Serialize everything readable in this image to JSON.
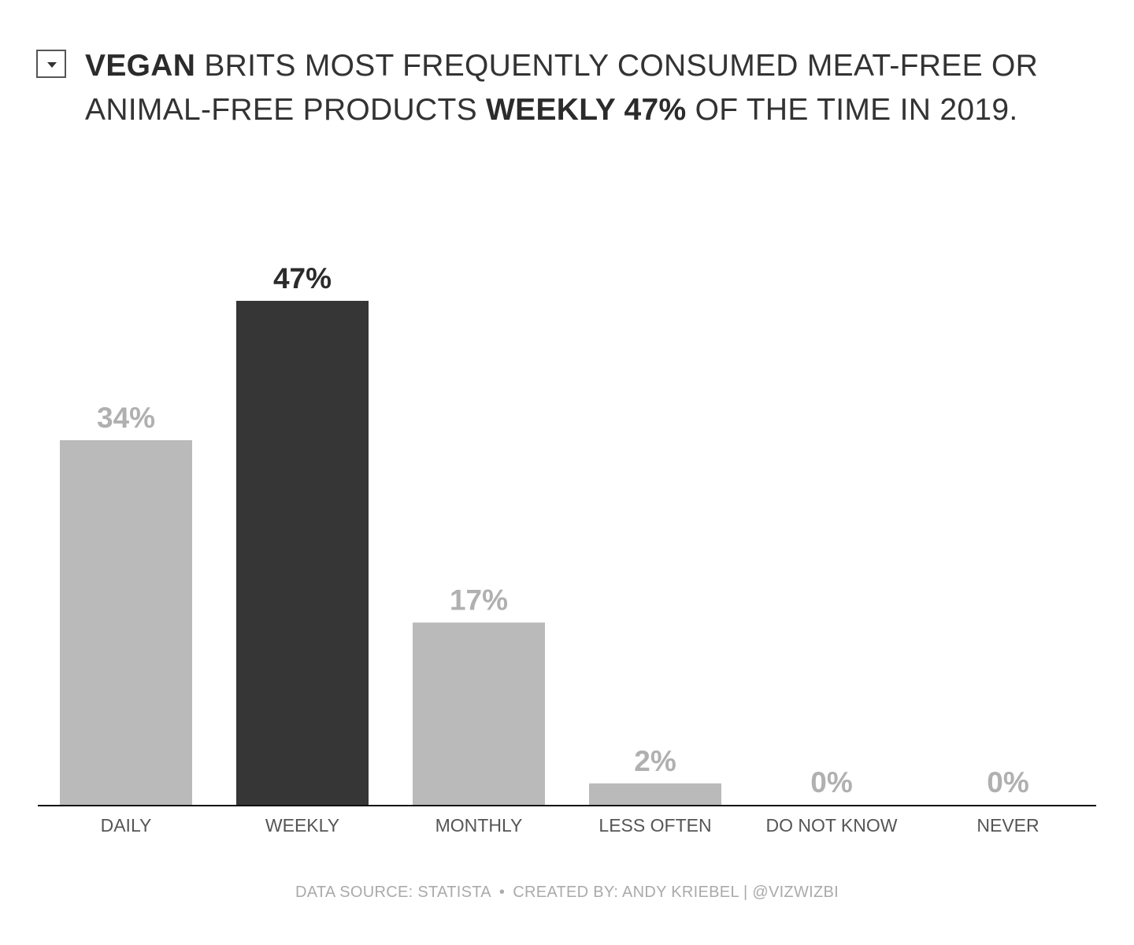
{
  "header": {
    "title_parts": [
      {
        "text": "VEGAN",
        "bold": true
      },
      {
        "text": " BRITS MOST FREQUENTLY CONSUMED MEAT-FREE OR ANIMAL-FREE PRODUCTS ",
        "bold": false
      },
      {
        "text": "WEEKLY 47%",
        "bold": true
      },
      {
        "text": " OF THE TIME IN 2019.",
        "bold": false
      }
    ]
  },
  "footer": {
    "source": "DATA SOURCE: STATISTA",
    "separator": "•",
    "credit": "CREATED BY: ANDY KRIEBEL | @VIZWIZBI"
  },
  "chart_data": {
    "type": "bar",
    "categories": [
      "DAILY",
      "WEEKLY",
      "MONTHLY",
      "LESS OFTEN",
      "DO NOT KNOW",
      "NEVER"
    ],
    "values": [
      34,
      47,
      17,
      2,
      0,
      0
    ],
    "value_labels": [
      "34%",
      "47%",
      "17%",
      "2%",
      "0%",
      "0%"
    ],
    "highlight_index": 1,
    "ylim": [
      0,
      47
    ],
    "grid": false,
    "legend": "none",
    "colors": {
      "default": "#bababa",
      "highlight": "#363636",
      "label_default": "#b0b0b0",
      "label_highlight": "#2b2b2b",
      "axis_label": "#555555",
      "baseline": "#111111"
    }
  }
}
